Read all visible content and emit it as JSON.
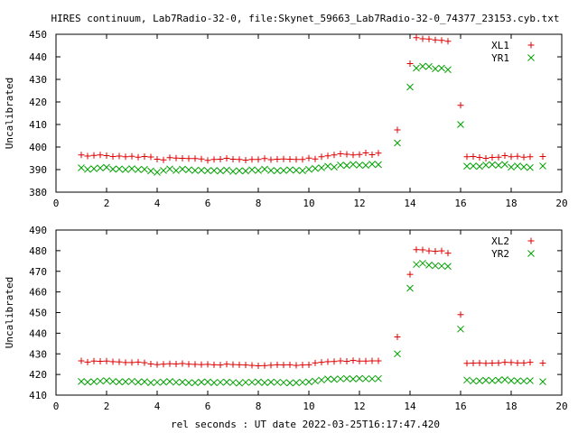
{
  "title": "HIRES continuum, Lab7Radio-32-0, file:Skynet_59663_Lab7Radio-32-0_74377_23153.cyb.txt",
  "xlabel": "rel seconds : UT date 2022-03-25T16:17:47.420",
  "chart_data": [
    {
      "type": "scatter",
      "ylabel": "Uncalibrated",
      "xlim": [
        0,
        20
      ],
      "ylim": [
        380,
        450
      ],
      "x_ticks": [
        0,
        2,
        4,
        6,
        8,
        10,
        12,
        14,
        16,
        18,
        20
      ],
      "y_ticks": [
        380,
        390,
        400,
        410,
        420,
        430,
        440,
        450
      ],
      "legend_position": "top-right",
      "x": [
        1.0,
        1.25,
        1.5,
        1.75,
        2.0,
        2.25,
        2.5,
        2.75,
        3.0,
        3.25,
        3.5,
        3.75,
        4.0,
        4.25,
        4.5,
        4.75,
        5.0,
        5.25,
        5.5,
        5.75,
        6.0,
        6.25,
        6.5,
        6.75,
        7.0,
        7.25,
        7.5,
        7.75,
        8.0,
        8.25,
        8.5,
        8.75,
        9.0,
        9.25,
        9.5,
        9.75,
        10.0,
        10.25,
        10.5,
        10.75,
        11.0,
        11.25,
        11.5,
        11.75,
        12.0,
        12.25,
        12.5,
        12.75,
        13.0,
        13.25,
        13.5,
        13.75,
        14.0,
        14.25,
        14.5,
        14.75,
        15.0,
        15.25,
        15.5,
        15.75,
        16.0,
        16.25,
        16.5,
        16.75,
        17.0,
        17.25,
        17.5,
        17.75,
        18.0,
        18.25,
        18.5,
        18.75,
        19.0,
        19.25,
        19.5
      ],
      "series": [
        {
          "name": "XL1",
          "marker": "+",
          "color": "#e00000",
          "values": [
            396.5,
            396.0,
            396.3,
            396.5,
            396.2,
            395.8,
            396.0,
            395.7,
            395.9,
            395.5,
            395.8,
            395.6,
            394.6,
            394.3,
            395.3,
            395.1,
            395.0,
            394.9,
            394.9,
            394.7,
            394.1,
            394.5,
            394.6,
            395.0,
            394.6,
            394.5,
            394.2,
            394.5,
            394.5,
            394.9,
            394.4,
            394.6,
            394.7,
            394.6,
            394.5,
            394.5,
            395.1,
            394.7,
            395.7,
            396.1,
            396.5,
            397.0,
            396.8,
            396.5,
            396.7,
            397.4,
            396.6,
            397.3,
            407.6,
            437.0,
            448.5,
            448.0,
            447.9,
            447.5,
            447.3,
            446.9,
            418.5,
            395.7,
            395.8,
            395.4,
            395.0,
            395.4,
            395.5,
            396.2,
            395.7,
            395.9,
            395.5,
            395.7,
            395.8
          ],
          "x_index": [
            0,
            1,
            2,
            3,
            4,
            5,
            6,
            7,
            8,
            9,
            10,
            11,
            12,
            13,
            14,
            15,
            16,
            17,
            18,
            19,
            20,
            21,
            22,
            23,
            24,
            25,
            26,
            27,
            28,
            29,
            30,
            31,
            32,
            33,
            34,
            35,
            36,
            37,
            38,
            39,
            40,
            41,
            42,
            43,
            44,
            45,
            46,
            47,
            50,
            52,
            53,
            54,
            55,
            56,
            57,
            58,
            60,
            61,
            62,
            63,
            64,
            65,
            66,
            67,
            68,
            69,
            70,
            71,
            73
          ]
        },
        {
          "name": "YR1",
          "marker": "x",
          "color": "#00a000",
          "values": [
            390.8,
            390.1,
            390.4,
            390.7,
            391.0,
            390.2,
            390.3,
            390.0,
            390.4,
            390.0,
            390.1,
            389.4,
            388.8,
            389.6,
            390.3,
            389.6,
            390.2,
            389.9,
            389.6,
            389.7,
            389.5,
            389.6,
            389.4,
            389.8,
            389.2,
            389.5,
            389.4,
            389.9,
            389.6,
            390.2,
            389.6,
            389.5,
            389.6,
            389.9,
            389.7,
            389.5,
            390.1,
            390.5,
            390.8,
            391.5,
            391.1,
            392.0,
            391.8,
            392.3,
            392.0,
            391.9,
            392.4,
            392.2,
            401.8,
            426.6,
            435.0,
            435.8,
            435.7,
            434.7,
            435.0,
            434.3,
            410.0,
            391.5,
            391.6,
            391.4,
            392.0,
            392.2,
            391.9,
            392.3,
            391.1,
            391.6,
            391.2,
            390.9,
            391.6
          ],
          "x_index": [
            0,
            1,
            2,
            3,
            4,
            5,
            6,
            7,
            8,
            9,
            10,
            11,
            12,
            13,
            14,
            15,
            16,
            17,
            18,
            19,
            20,
            21,
            22,
            23,
            24,
            25,
            26,
            27,
            28,
            29,
            30,
            31,
            32,
            33,
            34,
            35,
            36,
            37,
            38,
            39,
            40,
            41,
            42,
            43,
            44,
            45,
            46,
            47,
            50,
            52,
            53,
            54,
            55,
            56,
            57,
            58,
            60,
            61,
            62,
            63,
            64,
            65,
            66,
            67,
            68,
            69,
            70,
            71,
            73
          ]
        }
      ]
    },
    {
      "type": "scatter",
      "ylabel": "Uncalibrated",
      "xlim": [
        0,
        20
      ],
      "ylim": [
        410,
        490
      ],
      "x_ticks": [
        0,
        2,
        4,
        6,
        8,
        10,
        12,
        14,
        16,
        18,
        20
      ],
      "y_ticks": [
        410,
        420,
        430,
        440,
        450,
        460,
        470,
        480,
        490
      ],
      "legend_position": "top-right",
      "x": [
        1.0,
        1.25,
        1.5,
        1.75,
        2.0,
        2.25,
        2.5,
        2.75,
        3.0,
        3.25,
        3.5,
        3.75,
        4.0,
        4.25,
        4.5,
        4.75,
        5.0,
        5.25,
        5.5,
        5.75,
        6.0,
        6.25,
        6.5,
        6.75,
        7.0,
        7.25,
        7.5,
        7.75,
        8.0,
        8.25,
        8.5,
        8.75,
        9.0,
        9.25,
        9.5,
        9.75,
        10.0,
        10.25,
        10.5,
        10.75,
        11.0,
        11.25,
        11.5,
        11.75,
        12.0,
        12.25,
        12.5,
        12.75,
        13.0,
        13.25,
        13.5,
        13.75,
        14.0,
        14.25,
        14.5,
        14.75,
        15.0,
        15.25,
        15.5,
        15.75,
        16.0,
        16.25,
        16.5,
        16.75,
        17.0,
        17.25,
        17.5,
        17.75,
        18.0,
        18.25,
        18.5,
        18.75,
        19.0,
        19.25,
        19.5
      ],
      "series": [
        {
          "name": "XL2",
          "marker": "+",
          "color": "#e00000",
          "values": [
            426.6,
            426.0,
            426.5,
            426.4,
            426.5,
            426.2,
            426.1,
            425.8,
            425.8,
            426.0,
            425.7,
            425.1,
            424.8,
            425.0,
            425.2,
            425.1,
            425.3,
            425.0,
            424.9,
            424.8,
            424.9,
            424.7,
            424.6,
            425.0,
            424.8,
            424.7,
            424.6,
            424.4,
            424.2,
            424.3,
            424.5,
            424.7,
            424.6,
            424.7,
            424.4,
            424.6,
            424.7,
            425.6,
            425.9,
            426.2,
            426.3,
            426.6,
            426.4,
            426.8,
            426.5,
            426.5,
            426.6,
            426.6,
            438.2,
            468.5,
            480.5,
            480.4,
            479.9,
            479.7,
            479.9,
            478.8,
            449.0,
            425.4,
            425.5,
            425.6,
            425.4,
            425.5,
            425.6,
            425.9,
            425.8,
            425.6,
            425.6,
            425.9,
            425.5
          ],
          "x_index": [
            0,
            1,
            2,
            3,
            4,
            5,
            6,
            7,
            8,
            9,
            10,
            11,
            12,
            13,
            14,
            15,
            16,
            17,
            18,
            19,
            20,
            21,
            22,
            23,
            24,
            25,
            26,
            27,
            28,
            29,
            30,
            31,
            32,
            33,
            34,
            35,
            36,
            37,
            38,
            39,
            40,
            41,
            42,
            43,
            44,
            45,
            46,
            47,
            50,
            52,
            53,
            54,
            55,
            56,
            57,
            58,
            60,
            61,
            62,
            63,
            64,
            65,
            66,
            67,
            68,
            69,
            70,
            71,
            73
          ]
        },
        {
          "name": "YR2",
          "marker": "x",
          "color": "#00a000",
          "values": [
            416.6,
            416.3,
            416.5,
            416.8,
            417.0,
            416.6,
            416.4,
            416.5,
            416.7,
            416.3,
            416.5,
            416.0,
            416.2,
            416.3,
            416.6,
            416.2,
            416.3,
            416.0,
            416.0,
            416.3,
            416.4,
            416.0,
            416.2,
            416.3,
            416.1,
            415.8,
            416.2,
            416.2,
            416.4,
            416.0,
            416.3,
            416.2,
            416.1,
            415.9,
            416.0,
            416.2,
            416.4,
            416.8,
            417.3,
            417.8,
            417.6,
            417.9,
            418.0,
            417.8,
            418.1,
            417.9,
            417.9,
            418.0,
            430.0,
            461.8,
            473.3,
            473.9,
            473.0,
            472.7,
            472.6,
            472.4,
            442.0,
            417.3,
            416.8,
            416.9,
            417.2,
            417.0,
            417.2,
            417.5,
            417.0,
            416.9,
            416.8,
            417.0,
            416.5
          ],
          "x_index": [
            0,
            1,
            2,
            3,
            4,
            5,
            6,
            7,
            8,
            9,
            10,
            11,
            12,
            13,
            14,
            15,
            16,
            17,
            18,
            19,
            20,
            21,
            22,
            23,
            24,
            25,
            26,
            27,
            28,
            29,
            30,
            31,
            32,
            33,
            34,
            35,
            36,
            37,
            38,
            39,
            40,
            41,
            42,
            43,
            44,
            45,
            46,
            47,
            50,
            52,
            53,
            54,
            55,
            56,
            57,
            58,
            60,
            61,
            62,
            63,
            64,
            65,
            66,
            67,
            68,
            69,
            70,
            71,
            73
          ]
        }
      ]
    }
  ]
}
